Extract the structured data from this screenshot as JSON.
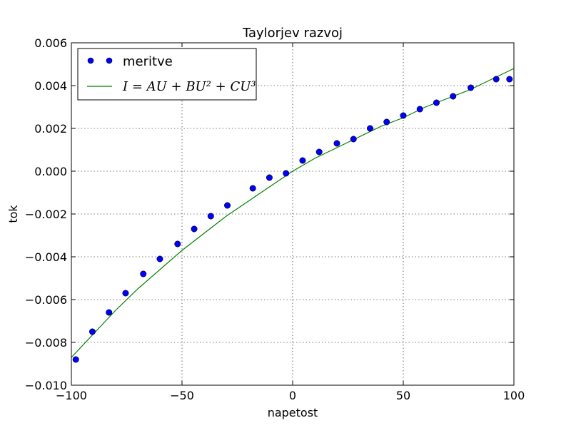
{
  "chart_data": {
    "type": "scatter",
    "title": "Taylorjev razvoj",
    "xlabel": "napetost",
    "ylabel": "tok",
    "xlim": [
      -100,
      100
    ],
    "ylim": [
      -0.01,
      0.006
    ],
    "grid": true,
    "legend_position": "top-left",
    "x_ticks": [
      -100,
      -50,
      0,
      50,
      100
    ],
    "x_tick_labels": [
      "−100",
      "−50",
      "0",
      "50",
      "100"
    ],
    "y_ticks": [
      -0.01,
      -0.008,
      -0.006,
      -0.004,
      -0.002,
      0.0,
      0.002,
      0.004,
      0.006
    ],
    "y_tick_labels": [
      "−0.010",
      "−0.008",
      "−0.006",
      "−0.004",
      "−0.002",
      "0.000",
      "0.002",
      "0.004",
      "0.006"
    ],
    "series": [
      {
        "name": "meritve",
        "kind": "points",
        "color": "#0000ff",
        "x": [
          -98,
          -90.5,
          -83,
          -75.5,
          -67.5,
          -60,
          -52,
          -44.5,
          -37,
          -29.5,
          -18,
          -10.5,
          -3,
          4.5,
          12,
          20,
          27.5,
          35,
          42.5,
          50,
          57.5,
          65,
          72.5,
          80.5,
          92,
          98
        ],
        "y": [
          -0.0088,
          -0.0075,
          -0.0066,
          -0.0057,
          -0.0048,
          -0.0041,
          -0.0034,
          -0.0027,
          -0.0021,
          -0.0016,
          -0.0008,
          -0.0003,
          -0.0001,
          0.0005,
          0.0009,
          0.0013,
          0.0015,
          0.002,
          0.0023,
          0.0026,
          0.0029,
          0.0032,
          0.0035,
          0.0039,
          0.0043,
          0.0043
        ]
      },
      {
        "name": "I = AU + BU² + CU³",
        "kind": "line",
        "color": "#008000",
        "x": [
          -100,
          -90,
          -80,
          -70,
          -60,
          -50,
          -40,
          -30,
          -20,
          -10,
          0,
          10,
          20,
          30,
          40,
          50,
          60,
          70,
          80,
          90,
          100
        ],
        "y": [
          -0.0087,
          -0.0076,
          -0.0065,
          -0.0055,
          -0.0046,
          -0.0037,
          -0.0029,
          -0.0021,
          -0.0014,
          -0.0007,
          0.0,
          0.0006,
          0.0011,
          0.0016,
          0.0021,
          0.0025,
          0.003,
          0.0034,
          0.0038,
          0.0043,
          0.0048
        ]
      }
    ]
  }
}
